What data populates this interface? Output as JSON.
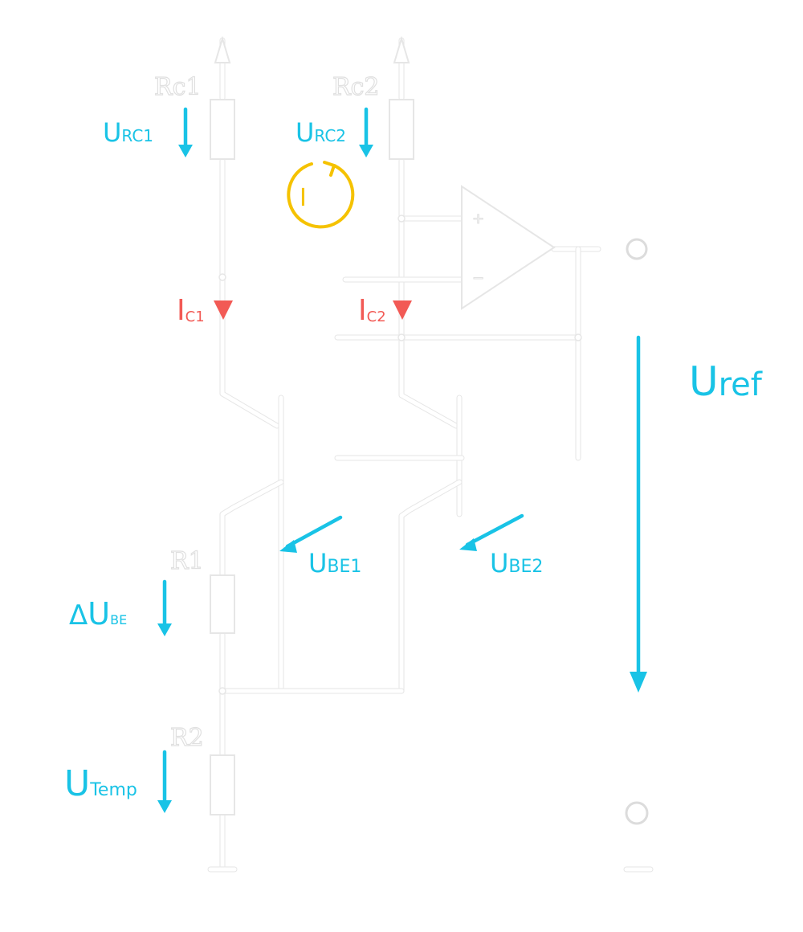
{
  "diagram": {
    "resistors": {
      "rc1": "Rc1",
      "rc2": "Rc2",
      "r1": "R1",
      "r2": "R2"
    },
    "opamp": {
      "plus": "+",
      "minus": "−"
    },
    "currents": {
      "ic1": {
        "main": "I",
        "sub": "C1"
      },
      "ic2": {
        "main": "I",
        "sub": "C2"
      }
    },
    "voltages": {
      "urc1": {
        "main": "U",
        "sub": "RC1"
      },
      "urc2": {
        "main": "U",
        "sub": "RC2"
      },
      "ube1": {
        "main": "U",
        "sub": "BE1"
      },
      "ube2": {
        "main": "U",
        "sub": "BE2"
      },
      "delta_ube": {
        "prefix": "Δ",
        "main": "U",
        "sub": "BE"
      },
      "utemp": {
        "main": "U",
        "sub": "Temp"
      },
      "uref": {
        "main": "U",
        "sub": "ref"
      }
    },
    "mesh": {
      "label": "I"
    },
    "colors": {
      "voltage": "#19c3e6",
      "current": "#f25a55",
      "mesh": "#f5c200",
      "wire": "#ffffff",
      "background": "#ffffff"
    }
  }
}
